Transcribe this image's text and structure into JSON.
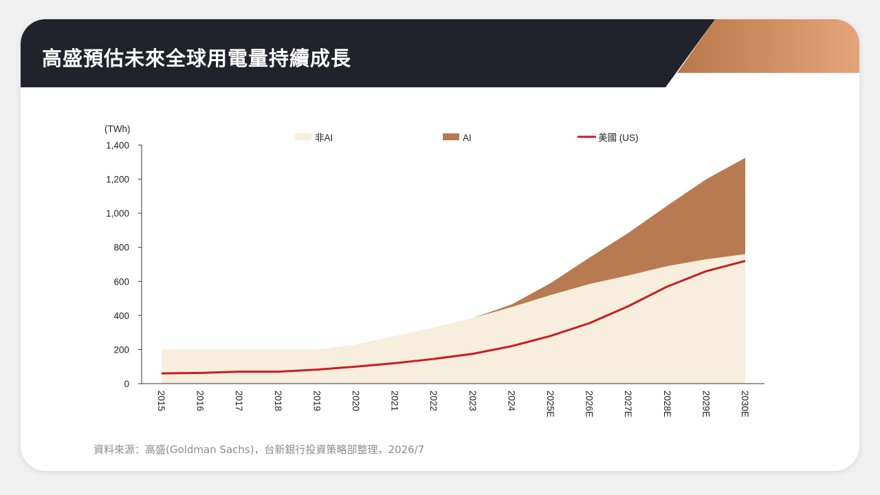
{
  "slide": {
    "title": "高盛預估未來全球用電量持續成長",
    "source": "資料來源：高盛(Goldman Sachs)，台新銀行投資策略部整理，2026/7"
  },
  "colors": {
    "header_dark": "#20232a",
    "header_accent_start": "#b8784b",
    "header_accent_end": "#e4a57a",
    "non_ai": "#f8eedd",
    "ai": "#b87a50",
    "us_line": "#cc1a20",
    "axis": "#333333"
  },
  "chart_data": {
    "type": "area",
    "unit_label": "(TWh)",
    "ylim": [
      0,
      1400
    ],
    "yticks": [
      0,
      200,
      400,
      600,
      800,
      1000,
      1200,
      1400
    ],
    "ytick_labels": [
      "0",
      "200",
      "400",
      "600",
      "800",
      "1,000",
      "1,200",
      "1,400"
    ],
    "categories": [
      "2015",
      "2016",
      "2017",
      "2018",
      "2019",
      "2020",
      "2021",
      "2022",
      "2023",
      "2024",
      "2025E",
      "2026E",
      "2027E",
      "2028E",
      "2029E",
      "2030E"
    ],
    "legend_position": "top",
    "series": [
      {
        "name": "非AI",
        "type": "stacked-area",
        "values": [
          200,
          200,
          200,
          200,
          200,
          230,
          280,
          330,
          385,
          450,
          520,
          585,
          635,
          690,
          730,
          760
        ]
      },
      {
        "name": "AI",
        "type": "stacked-area",
        "values": [
          0,
          0,
          0,
          0,
          0,
          0,
          0,
          0,
          0,
          15,
          70,
          155,
          250,
          355,
          470,
          565
        ]
      },
      {
        "name": "美國 (US)",
        "type": "line",
        "values": [
          60,
          63,
          70,
          70,
          82,
          100,
          120,
          145,
          175,
          220,
          280,
          355,
          455,
          570,
          660,
          720
        ]
      }
    ]
  }
}
